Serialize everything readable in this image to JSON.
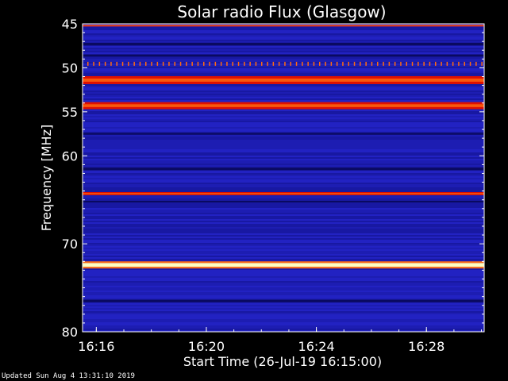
{
  "chart_data": {
    "type": "heatmap",
    "title": "Solar radio Flux (Glasgow)",
    "ylabel": "Frequency [MHz]",
    "xlabel": "Start Time (26-Jul-19 16:15:00)",
    "y_ticks": [
      45,
      50,
      55,
      60,
      70,
      80
    ],
    "x_ticks": [
      "16:16",
      "16:20",
      "16:24",
      "16:28"
    ],
    "ylim": [
      45,
      80
    ],
    "xlim_minutes": [
      15.5,
      30.1
    ],
    "colors": {
      "background": "#1e1eb4",
      "deep": "#0a0a60",
      "red": "#e01000",
      "orange": "#ff6a10",
      "yellow": "#ffffc0"
    },
    "bands": [
      {
        "freq": 45.2,
        "width": 0.15,
        "level": "red"
      },
      {
        "freq": 47.3,
        "width": 0.3,
        "level": "deep"
      },
      {
        "freq": 48.6,
        "width": 0.25,
        "level": "deep"
      },
      {
        "freq": 51.4,
        "width": 0.9,
        "level": "red"
      },
      {
        "freq": 54.3,
        "width": 0.8,
        "level": "red"
      },
      {
        "freq": 57.5,
        "width": 0.2,
        "level": "deep"
      },
      {
        "freq": 61.5,
        "width": 0.3,
        "level": "deep"
      },
      {
        "freq": 64.3,
        "width": 0.35,
        "level": "red"
      },
      {
        "freq": 65.2,
        "width": 0.2,
        "level": "deep"
      },
      {
        "freq": 72.4,
        "width": 0.45,
        "level": "yellow"
      },
      {
        "freq": 76.5,
        "width": 0.3,
        "level": "deep"
      }
    ],
    "spike_row_freq": 49.5
  },
  "footer": {
    "updated": "Updated Sun Aug  4 13:31:10 2019"
  }
}
